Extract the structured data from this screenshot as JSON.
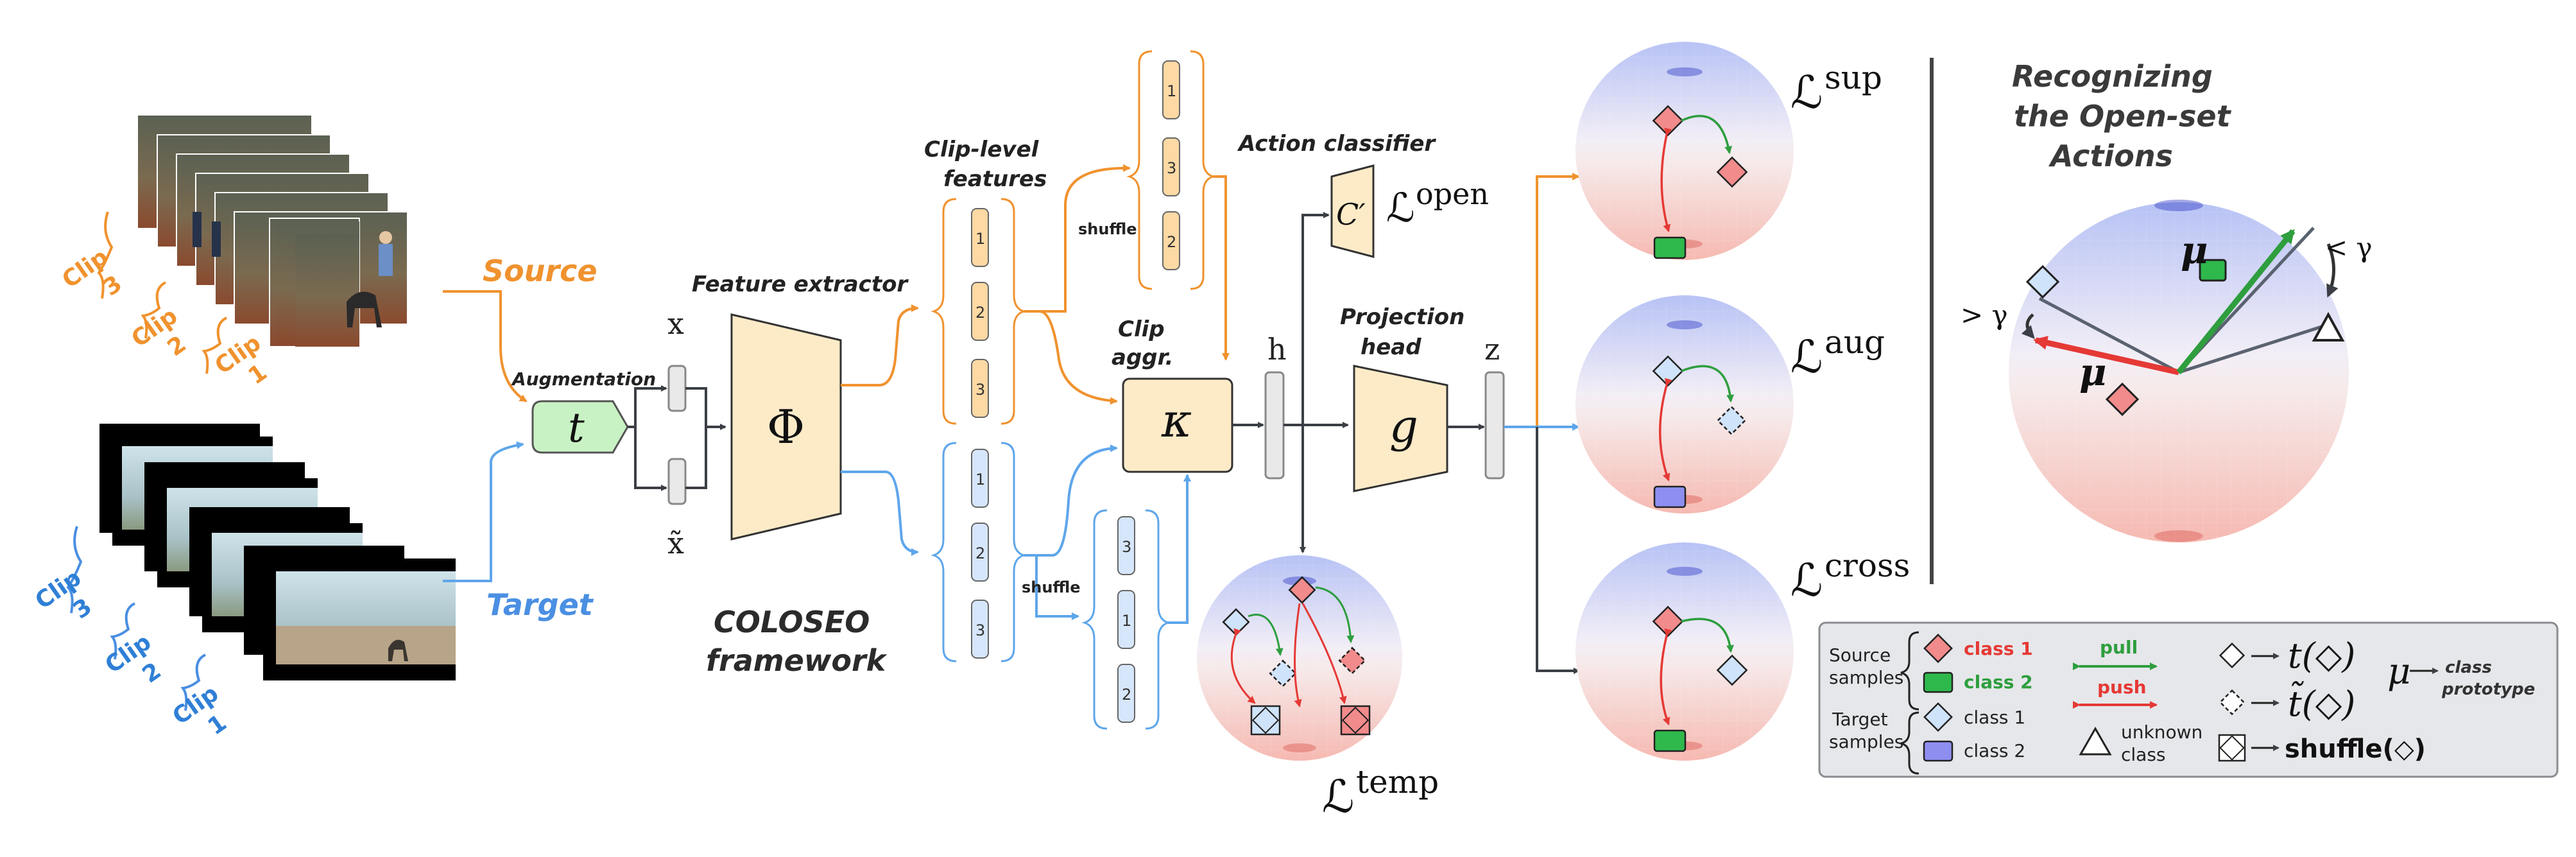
{
  "labels": {
    "source": "Source",
    "target": "Target",
    "clip1": "Clip",
    "clip2": "Clip",
    "clip3": "Clip",
    "n1": "1",
    "n2": "2",
    "n3": "3",
    "augmentation": "Augmentation",
    "t": "t",
    "x": "x",
    "x_tilde": "x̃",
    "feature_extractor": "Feature extractor",
    "phi": "Φ",
    "clip_level_features_1": "Clip-level",
    "clip_level_features_2": "features",
    "shuffle": "shuffle",
    "clip_aggr_1": "Clip",
    "clip_aggr_2": "aggr.",
    "kappa": "κ",
    "h": "h",
    "action_classifier": "Action classifier",
    "c_prime": "C′",
    "projection_head_1": "Projection",
    "projection_head_2": "head",
    "g": "g",
    "z": "z",
    "framework_1": "COLOSEO",
    "framework_2": "framework",
    "recognizing_1": "Recognizing",
    "recognizing_2": "the Open-set",
    "recognizing_3": "Actions",
    "gt_gamma": "> γ",
    "lt_gamma": "< γ",
    "mu": "μ"
  },
  "losses": {
    "L": "ℒ",
    "open": "open",
    "sup": "sup",
    "aug": "aug",
    "cross": "cross",
    "temp": "temp"
  },
  "legend": {
    "source_samples_1": "Source",
    "source_samples_2": "samples",
    "target_samples_1": "Target",
    "target_samples_2": "samples",
    "class1": "class 1",
    "class2": "class 2",
    "pull": "pull",
    "push": "push",
    "unknown_1": "unknown",
    "unknown_2": "class",
    "t_map": "t(◇)",
    "ttilde_map": "t̃(◇)",
    "shuffle_map": "shuffle(◇)",
    "mu": "μ",
    "class_prototype_1": "class",
    "class_prototype_2": "prototype"
  },
  "colors": {
    "orange": "#f0922e",
    "blue": "#5ea6ea",
    "clip_blue_text": "#2f7fd6",
    "feature_fill": "#fdebc8",
    "aug_fill": "#c9f2c4",
    "red": "#e53935",
    "green": "#2e9e3e",
    "pink": "#f28b8b",
    "legend_bg": "#e6e7ea"
  }
}
